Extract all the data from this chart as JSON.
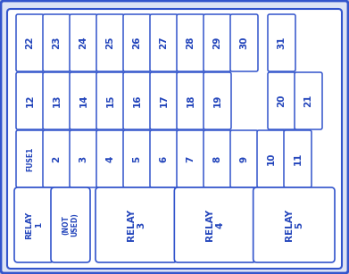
{
  "bg_color": "#ffffff",
  "border_color": "#3355cc",
  "box_fill": "#ffffff",
  "box_edge": "#3355cc",
  "text_color": "#2244bb",
  "outer_bg": "#aabbdd",
  "inner_bg": "#ffffff",
  "row1": [
    "22",
    "23",
    "24",
    "25",
    "26",
    "27",
    "28",
    "29",
    "30",
    "31"
  ],
  "row2": [
    "12",
    "13",
    "14",
    "15",
    "16",
    "17",
    "18",
    "19",
    "20",
    "21"
  ],
  "row3": [
    "FUSE1",
    "2",
    "3",
    "4",
    "5",
    "6",
    "7",
    "8",
    "9",
    "10",
    "11"
  ],
  "relays": [
    "RELAY\n1",
    "(NOT\nUSED)",
    "RELAY\n3",
    "RELAY\n4",
    "RELAY\n5"
  ],
  "figw": 3.91,
  "figh": 3.07,
  "dpi": 100
}
